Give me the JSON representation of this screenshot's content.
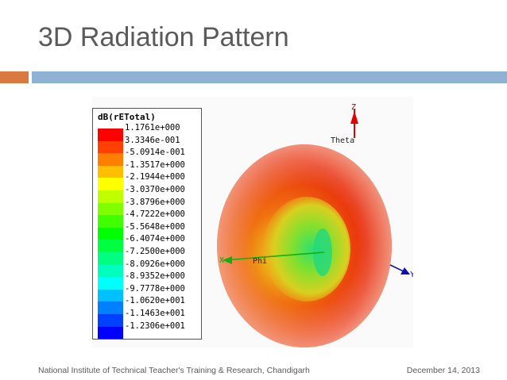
{
  "slide": {
    "title": "3D Radiation Pattern",
    "footer_left": "National  Institute of Technical Teacher's Training &  Research, Chandigarh",
    "footer_right": "December 14, 2013"
  },
  "legend": {
    "title": "dB(rETotal)",
    "entries": [
      {
        "value": "1.1761e+000",
        "color": "#ff0000"
      },
      {
        "value": "3.3346e-001",
        "color": "#ff4000"
      },
      {
        "value": "-5.0914e-001",
        "color": "#ff8000"
      },
      {
        "value": "-1.3517e+000",
        "color": "#ffbf00"
      },
      {
        "value": "-2.1944e+000",
        "color": "#ffff00"
      },
      {
        "value": "-3.0370e+000",
        "color": "#bfff00"
      },
      {
        "value": "-3.8796e+000",
        "color": "#80ff00"
      },
      {
        "value": "-4.7222e+000",
        "color": "#40ff00"
      },
      {
        "value": "-5.5648e+000",
        "color": "#00ff00"
      },
      {
        "value": "-6.4074e+000",
        "color": "#00ff40"
      },
      {
        "value": "-7.2500e+000",
        "color": "#00ff80"
      },
      {
        "value": "-8.0926e+000",
        "color": "#00ffbf"
      },
      {
        "value": "-8.9352e+000",
        "color": "#00ffff"
      },
      {
        "value": "-9.7778e+000",
        "color": "#00bfff"
      },
      {
        "value": "-1.0620e+001",
        "color": "#0080ff"
      },
      {
        "value": "-1.1463e+001",
        "color": "#0040ff"
      },
      {
        "value": "-1.2306e+001",
        "color": "#0000ff"
      }
    ]
  },
  "axes": {
    "z_label": "Z",
    "theta_label": "Theta",
    "x_label": "X",
    "phi_label": "Phi",
    "y_label": "Y"
  }
}
